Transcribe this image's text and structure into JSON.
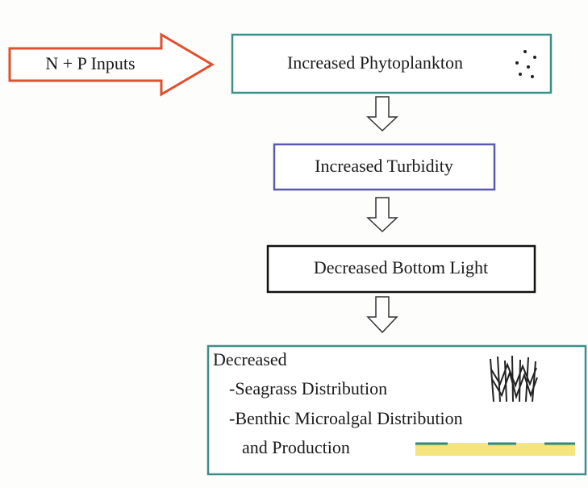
{
  "input": {
    "label": "N + P Inputs"
  },
  "nodes": [
    {
      "label": "Increased Phytoplankton"
    },
    {
      "label": "Increased Turbidity"
    },
    {
      "label": "Decreased Bottom Light"
    },
    {
      "lines": [
        "Decreased",
        "-Seagrass Distribution",
        "-Benthic Microalgal Distribution",
        "and Production"
      ]
    }
  ]
}
